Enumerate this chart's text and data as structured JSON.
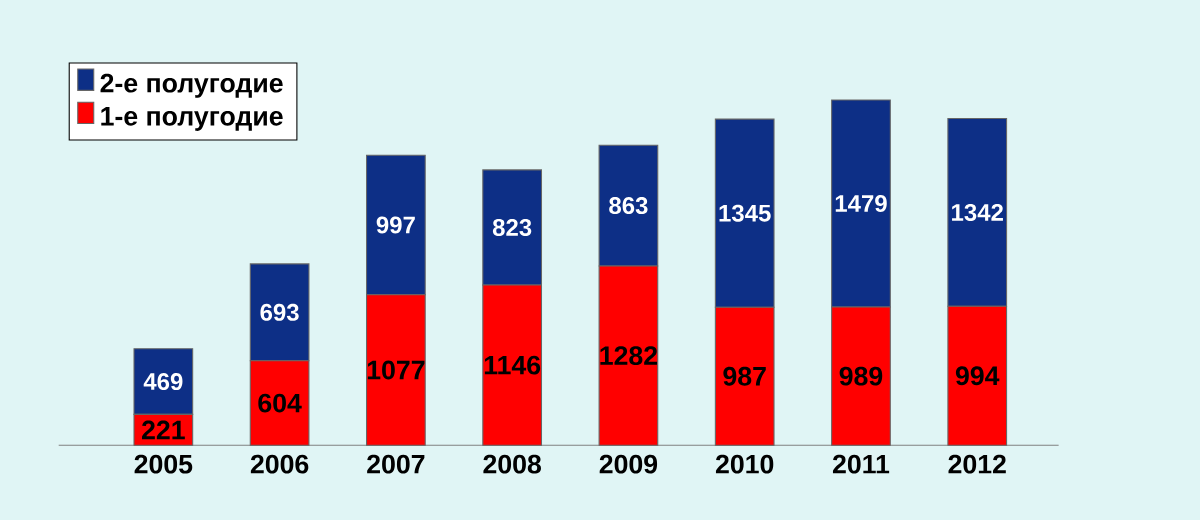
{
  "chart_data": {
    "type": "bar",
    "stacked": true,
    "data_labels": true,
    "legend": "top left",
    "categories": [
      "2005",
      "2006",
      "2007",
      "2008",
      "2009",
      "2010",
      "2011",
      "2012"
    ],
    "series": [
      {
        "name": "1-е полугодие",
        "color": "#ff0000",
        "values": [
          221,
          604,
          1077,
          1146,
          1282,
          987,
          989,
          994
        ]
      },
      {
        "name": "2-е полугодие",
        "color": "#0d2f86",
        "values": [
          469,
          693,
          997,
          823,
          863,
          1345,
          1479,
          1342
        ]
      }
    ]
  }
}
